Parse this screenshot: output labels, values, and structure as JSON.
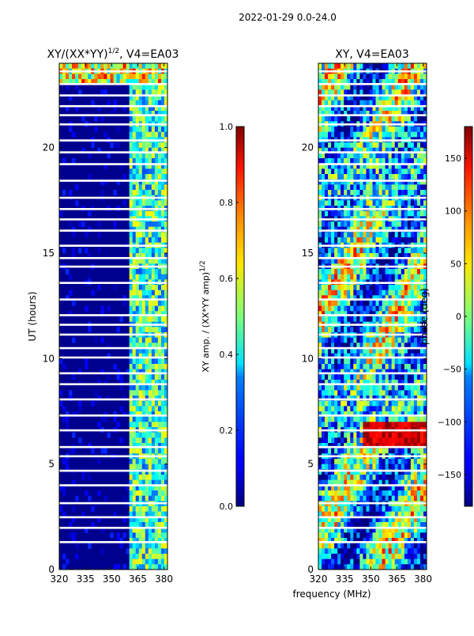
{
  "figure": {
    "suptitle": "2022-01-29 0.0-24.0",
    "xlabel": "frequency (MHz)"
  },
  "chart_data": [
    {
      "type": "heatmap",
      "title_main": "XY/(XX*YY)",
      "title_sup": "1/2",
      "title_rest": ", V4=EA03",
      "ylabel": "UT (hours)",
      "x_ticks": [
        "320",
        "335",
        "350",
        "365",
        "380"
      ],
      "x_range": [
        320,
        382
      ],
      "y_ticks": [
        "0",
        "5",
        "10",
        "15",
        "20"
      ],
      "y_range": [
        0,
        24
      ],
      "colorbar": {
        "label_main": "XY amp. / (XX*YY amp)",
        "label_sup": "1/2",
        "ticks": [
          "0.0",
          "0.2",
          "0.4",
          "0.6",
          "0.8",
          "1.0"
        ],
        "range": [
          0.0,
          1.0
        ],
        "colormap": "jet"
      }
    },
    {
      "type": "heatmap",
      "title": "XY, V4=EA03",
      "x_ticks": [
        "320",
        "335",
        "350",
        "365",
        "380"
      ],
      "x_range": [
        320,
        382
      ],
      "y_ticks": [
        "0",
        "5",
        "10",
        "15",
        "20"
      ],
      "y_range": [
        0,
        24
      ],
      "colorbar": {
        "label": "phase (deg)",
        "ticks": [
          "−150",
          "−100",
          "−50",
          "0",
          "50",
          "100",
          "150"
        ],
        "tick_values": [
          -150,
          -100,
          -50,
          0,
          50,
          100,
          150
        ],
        "range": [
          -180,
          180
        ],
        "colormap": "jet"
      }
    }
  ]
}
